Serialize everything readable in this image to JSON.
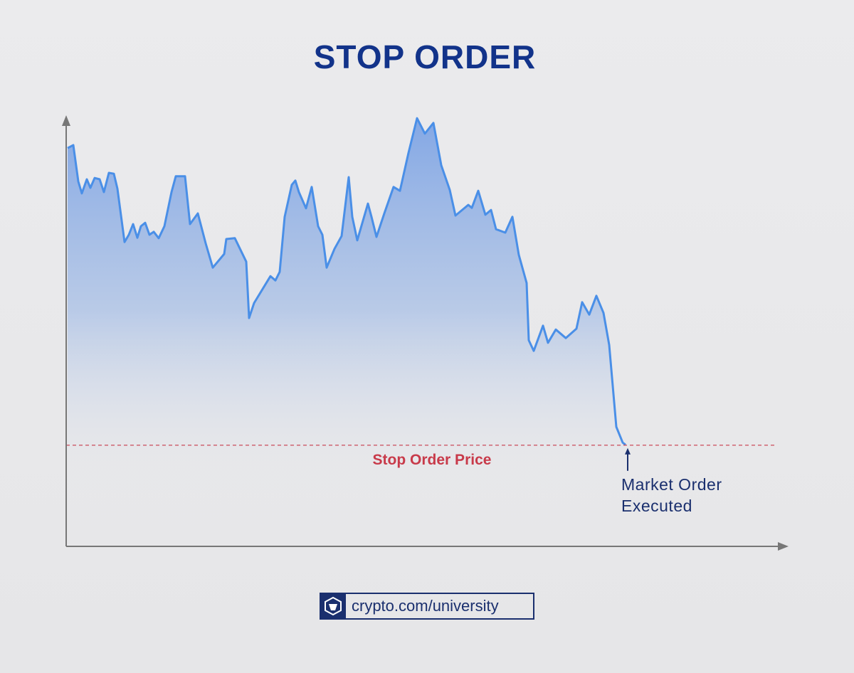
{
  "chart_data": {
    "type": "area",
    "title": "STOP ORDER",
    "x": [
      0.2,
      1.0,
      1.7,
      2.2,
      2.9,
      3.4,
      4.0,
      4.7,
      5.3,
      6.0,
      6.7,
      7.2,
      8.2,
      8.8,
      9.4,
      10.0,
      10.5,
      11.1,
      11.7,
      12.3,
      13.0,
      13.8,
      14.8,
      15.4,
      16.7,
      17.4,
      18.5,
      19.6,
      20.6,
      22.2,
      22.5,
      23.7,
      25.3,
      25.7,
      26.4,
      28.7,
      29.4,
      30.0,
      30.7,
      31.7,
      32.2,
      32.7,
      33.7,
      34.5,
      35.4,
      36.0,
      36.6,
      37.7,
      38.7,
      39.7,
      40.2,
      40.9,
      42.4,
      42.9,
      43.6,
      44.7,
      46.0,
      46.9,
      48.1,
      49.3,
      50.4,
      51.6,
      52.7,
      53.9,
      54.7,
      56.5,
      57.0,
      57.9,
      58.9,
      59.7,
      60.4,
      61.7,
      62.7,
      63.6,
      64.7,
      65.0,
      65.7,
      67.0,
      67.7,
      68.8,
      70.2,
      71.7,
      72.5,
      73.5,
      74.5,
      75.5,
      76.3,
      77.3,
      78.2,
      78.6
    ],
    "series": [
      {
        "color": "#4a8fe7",
        "values": [
          93.3,
          94,
          85.5,
          82.7,
          86,
          84,
          86.3,
          86,
          83,
          87.5,
          87.3,
          83.8,
          71.3,
          73,
          75.5,
          72.3,
          75,
          75.8,
          73,
          73.7,
          72.2,
          75,
          83,
          86.7,
          86.7,
          75.5,
          78,
          71,
          65.3,
          68.5,
          72,
          72.2,
          66.7,
          53.5,
          57,
          63.3,
          62.3,
          64.3,
          77.2,
          84.7,
          85.7,
          83,
          79.2,
          84.2,
          75,
          73,
          65.3,
          69.7,
          72.7,
          86.5,
          77.2,
          71.7,
          80.3,
          77.2,
          72.5,
          78,
          84.2,
          83.3,
          92.2,
          100.3,
          96.7,
          99.2,
          89.3,
          83.5,
          77.5,
          80,
          79.3,
          83.3,
          77.7,
          78.8,
          74.3,
          73.5,
          77.2,
          68.3,
          61.7,
          48.3,
          45.8,
          51.7,
          47.7,
          50.8,
          48.8,
          51,
          57.2,
          54.3,
          58.7,
          54.7,
          47.2,
          28,
          24.3,
          23.8
        ]
      }
    ],
    "xlim": [
      0,
      100
    ],
    "ylim": [
      0,
      100
    ],
    "stop_price": 23.7,
    "stop_color": "#c83a4a",
    "stop_label": "Stop Order Price",
    "executed_label": [
      "Market Order",
      "Executed"
    ],
    "footer": "crypto.com/university"
  }
}
